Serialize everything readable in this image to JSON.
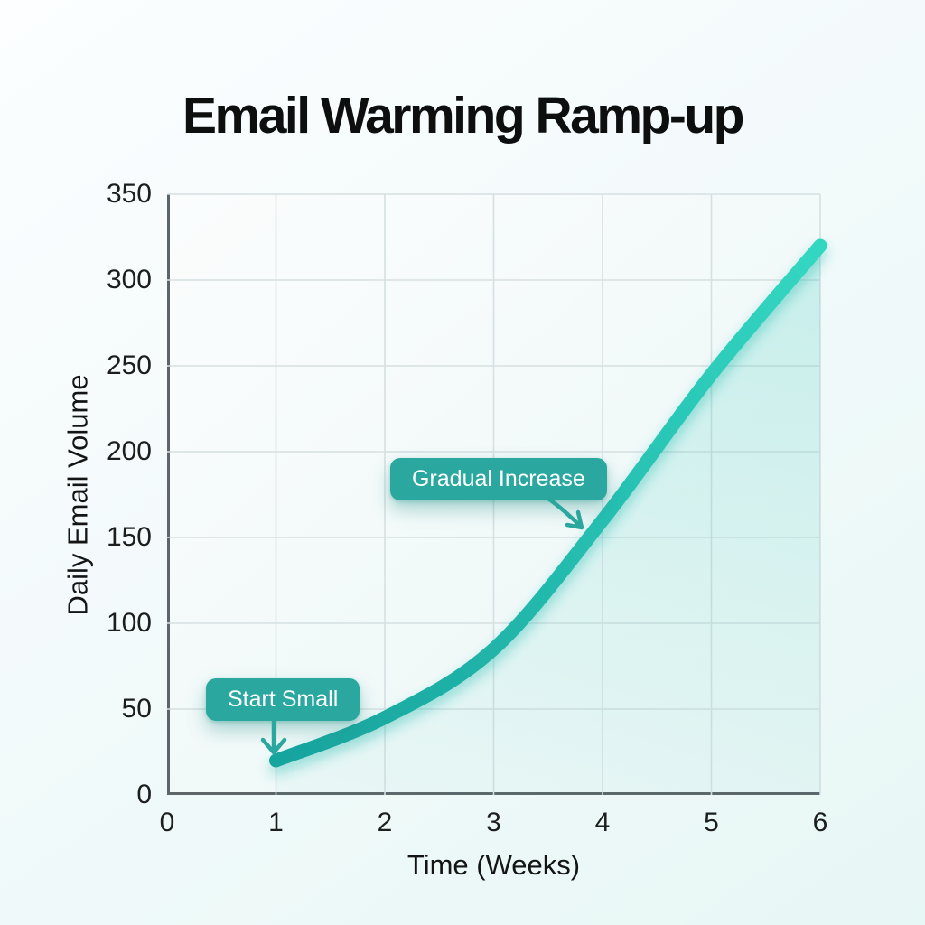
{
  "title": "Email Warming Ramp-up",
  "chart_data": {
    "type": "line",
    "title": "Email Warming Ramp-up",
    "xlabel": "Time (Weeks)",
    "ylabel": "Daily Email Volume",
    "xlim": [
      0,
      6
    ],
    "ylim": [
      0,
      350
    ],
    "x_ticks": [
      0,
      1,
      2,
      3,
      4,
      5,
      6
    ],
    "y_ticks": [
      0,
      50,
      100,
      150,
      200,
      250,
      300,
      350
    ],
    "grid": true,
    "legend": "none",
    "series": [
      {
        "name": "Daily Email Volume",
        "x": [
          1,
          2,
          3,
          4,
          5,
          6
        ],
        "y": [
          20,
          45,
          85,
          160,
          245,
          320
        ]
      }
    ],
    "annotations": [
      {
        "label": "Start Small",
        "target_x": 1,
        "target_y": 20
      },
      {
        "label": "Gradual Increase",
        "target_x": 3.9,
        "target_y": 150
      }
    ],
    "colors": {
      "line_start": "#18a49e",
      "line_end": "#33d7c2",
      "area_fill": "#2cc8b8",
      "annotation_bg": "#2aa79f",
      "annotation_text": "#ffffff",
      "grid": "#d6dfe1",
      "axis": "#5d6569",
      "title_text": "#0d0f0f",
      "tick_text": "#1c1e1e"
    }
  }
}
